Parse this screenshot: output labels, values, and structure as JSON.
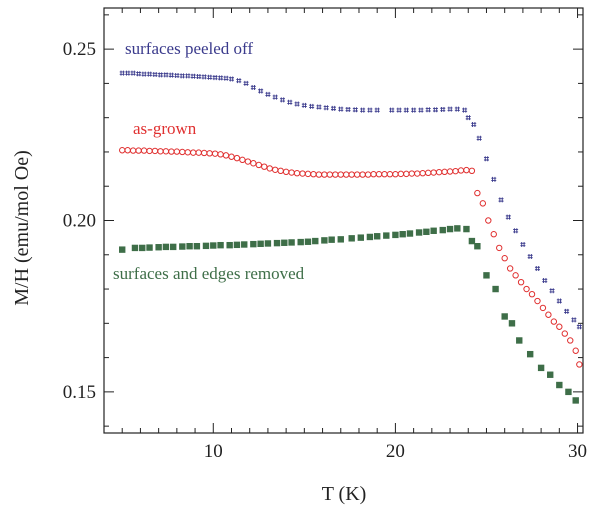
{
  "chart_data": {
    "type": "scatter",
    "xlabel": "T (K)",
    "ylabel": "M/H (emu/mol Oe)",
    "xlim": [
      4,
      30.3
    ],
    "ylim": [
      0.138,
      0.262
    ],
    "xticks": [
      10,
      20,
      30
    ],
    "yticks": [
      0.15,
      0.2,
      0.25
    ],
    "x_tick_labels": [
      "10",
      "20",
      "30"
    ],
    "y_tick_labels": [
      "0.15",
      "0.20",
      "0.25"
    ],
    "grid": false,
    "legend": "inline-labels",
    "series": [
      {
        "name": "surfaces peeled off",
        "color": "#3a3a8c",
        "marker": "cross-hash",
        "x": [
          5.0,
          5.3,
          5.6,
          5.9,
          6.2,
          6.5,
          6.8,
          7.1,
          7.4,
          7.7,
          8.0,
          8.3,
          8.6,
          8.9,
          9.2,
          9.5,
          9.8,
          10.1,
          10.4,
          10.7,
          11.0,
          11.4,
          11.8,
          12.2,
          12.6,
          13.0,
          13.4,
          13.8,
          14.2,
          14.6,
          15.0,
          15.4,
          15.8,
          16.2,
          16.6,
          17.0,
          17.4,
          17.8,
          18.2,
          18.6,
          19.0,
          19.8,
          20.2,
          20.6,
          21.0,
          21.4,
          21.8,
          22.2,
          22.6,
          23.0,
          23.4,
          23.8,
          24.0,
          24.3,
          24.6,
          25.0,
          25.4,
          25.8,
          26.2,
          26.6,
          27.0,
          27.4,
          27.8,
          28.2,
          28.6,
          29.0,
          29.4,
          29.8,
          30.1
        ],
        "y": [
          0.243,
          0.243,
          0.243,
          0.2428,
          0.2427,
          0.2427,
          0.2426,
          0.2425,
          0.2425,
          0.2424,
          0.2423,
          0.2422,
          0.2422,
          0.2421,
          0.242,
          0.2419,
          0.2418,
          0.2417,
          0.2416,
          0.2415,
          0.2413,
          0.2408,
          0.24,
          0.2388,
          0.2378,
          0.2368,
          0.236,
          0.2352,
          0.2345,
          0.234,
          0.2336,
          0.2333,
          0.2331,
          0.2329,
          0.2327,
          0.2325,
          0.2324,
          0.2323,
          0.2322,
          0.2322,
          0.2322,
          0.2322,
          0.2322,
          0.2322,
          0.2322,
          0.2322,
          0.2323,
          0.2323,
          0.2324,
          0.2325,
          0.2325,
          0.2322,
          0.23,
          0.228,
          0.224,
          0.218,
          0.212,
          0.206,
          0.201,
          0.197,
          0.193,
          0.1895,
          0.186,
          0.1825,
          0.1795,
          0.1765,
          0.1735,
          0.171,
          0.169
        ]
      },
      {
        "name": "as-grown",
        "color": "#e03030",
        "marker": "open-circle",
        "x": [
          5.0,
          5.3,
          5.6,
          5.9,
          6.2,
          6.5,
          6.8,
          7.1,
          7.4,
          7.7,
          8.0,
          8.3,
          8.6,
          8.9,
          9.2,
          9.5,
          9.8,
          10.1,
          10.4,
          10.7,
          11.0,
          11.3,
          11.6,
          11.9,
          12.2,
          12.5,
          12.8,
          13.1,
          13.4,
          13.7,
          14.0,
          14.3,
          14.6,
          14.9,
          15.2,
          15.5,
          15.8,
          16.1,
          16.4,
          16.7,
          17.0,
          17.3,
          17.6,
          17.9,
          18.2,
          18.5,
          18.8,
          19.1,
          19.4,
          19.7,
          20.0,
          20.3,
          20.6,
          20.9,
          21.2,
          21.5,
          21.8,
          22.1,
          22.4,
          22.7,
          23.0,
          23.3,
          23.6,
          23.9,
          24.2,
          24.5,
          24.8,
          25.1,
          25.4,
          25.7,
          26.0,
          26.3,
          26.6,
          26.9,
          27.2,
          27.5,
          27.8,
          28.1,
          28.4,
          28.7,
          29.0,
          29.3,
          29.6,
          29.9,
          30.1
        ],
        "y": [
          0.2205,
          0.2205,
          0.2204,
          0.2204,
          0.2204,
          0.2203,
          0.2203,
          0.2202,
          0.2202,
          0.2201,
          0.2201,
          0.22,
          0.2199,
          0.2198,
          0.2198,
          0.2197,
          0.2196,
          0.2195,
          0.2193,
          0.219,
          0.2186,
          0.2182,
          0.2177,
          0.2172,
          0.2167,
          0.2162,
          0.2157,
          0.2152,
          0.2148,
          0.2145,
          0.2142,
          0.214,
          0.2138,
          0.2137,
          0.2136,
          0.2135,
          0.2134,
          0.2134,
          0.2134,
          0.2134,
          0.2134,
          0.2134,
          0.2134,
          0.2134,
          0.2134,
          0.2134,
          0.2135,
          0.2135,
          0.2135,
          0.2135,
          0.2135,
          0.2136,
          0.2136,
          0.2137,
          0.2137,
          0.2138,
          0.2139,
          0.214,
          0.2141,
          0.2142,
          0.2143,
          0.2144,
          0.2146,
          0.2147,
          0.2145,
          0.208,
          0.205,
          0.2,
          0.196,
          0.192,
          0.189,
          0.186,
          0.184,
          0.182,
          0.18,
          0.1785,
          0.1765,
          0.1745,
          0.1725,
          0.1705,
          0.169,
          0.167,
          0.165,
          0.162,
          0.158
        ]
      },
      {
        "name": "surfaces and edges removed",
        "color": "#3e6e48",
        "marker": "filled-square",
        "x": [
          5.0,
          5.7,
          6.1,
          6.5,
          7.0,
          7.4,
          7.8,
          8.3,
          8.7,
          9.1,
          9.6,
          10.0,
          10.4,
          10.9,
          11.3,
          11.7,
          12.2,
          12.6,
          13.0,
          13.5,
          13.9,
          14.3,
          14.8,
          15.2,
          15.6,
          16.1,
          16.5,
          17.0,
          17.6,
          18.1,
          18.6,
          19.0,
          19.5,
          20.0,
          20.4,
          20.8,
          21.3,
          21.7,
          22.1,
          22.6,
          23.0,
          23.4,
          23.9,
          24.2,
          24.5,
          25.0,
          25.5,
          26.0,
          26.4,
          26.8,
          27.4,
          28.0,
          28.5,
          29.0,
          29.5,
          29.9
        ],
        "y": [
          0.1915,
          0.192,
          0.192,
          0.1921,
          0.1922,
          0.1923,
          0.1923,
          0.1924,
          0.1925,
          0.1925,
          0.1926,
          0.1927,
          0.1928,
          0.1928,
          0.1929,
          0.193,
          0.1931,
          0.1932,
          0.1933,
          0.1934,
          0.1935,
          0.1936,
          0.1937,
          0.1938,
          0.194,
          0.1942,
          0.1944,
          0.1945,
          0.1948,
          0.195,
          0.1952,
          0.1954,
          0.1956,
          0.1958,
          0.196,
          0.1962,
          0.1965,
          0.1967,
          0.197,
          0.1972,
          0.1975,
          0.1977,
          0.1975,
          0.194,
          0.1925,
          0.184,
          0.18,
          0.172,
          0.17,
          0.165,
          0.161,
          0.157,
          0.155,
          0.152,
          0.15,
          0.1475
        ]
      }
    ]
  }
}
